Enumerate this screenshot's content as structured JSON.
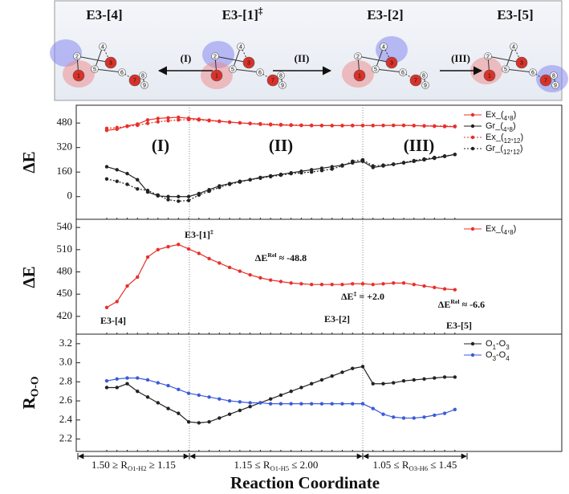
{
  "structures": [
    {
      "label": {
        "text": "E3-[4]"
      },
      "atoms": [
        "1",
        "2",
        "3",
        "4",
        "5",
        "6",
        "7",
        "8",
        "9"
      ]
    },
    {
      "label": {
        "text": "E3-[1]",
        "sup": "‡"
      },
      "atoms": [
        "1",
        "2",
        "3",
        "4",
        "5",
        "6",
        "7",
        "8",
        "9"
      ]
    },
    {
      "label": {
        "text": "E3-[2]"
      },
      "atoms": [
        "1",
        "2",
        "3",
        "4",
        "5",
        "6",
        "7",
        "8",
        "9"
      ]
    },
    {
      "label": {
        "text": "E3-[5]"
      },
      "atoms": [
        "1",
        "2",
        "3",
        "4",
        "5",
        "6",
        "7",
        "8",
        "9"
      ]
    }
  ],
  "reactions": [
    "(I)",
    "(II)",
    "(III)"
  ],
  "chart_data": [
    {
      "type": "line",
      "ylabel": {
        "text": "ΔE"
      },
      "categories": [
        null,
        null,
        null,
        null,
        null,
        null,
        null,
        null,
        null,
        null,
        null,
        null,
        null,
        null,
        null,
        null,
        null,
        null,
        null,
        null,
        null,
        null,
        null,
        null,
        null,
        null,
        null,
        null,
        null,
        null,
        null,
        null,
        null,
        null,
        null
      ],
      "ylim": [
        -148,
        596
      ],
      "yticks": [
        0,
        160,
        320,
        480
      ],
      "legend": "upper right",
      "annotations": [
        "(I)",
        "(II)",
        "(III)"
      ],
      "series": [
        {
          "name": "Ex_(4,8)",
          "color": "#e8302a",
          "dash": false,
          "values": [
            432,
            440,
            461,
            473,
            500,
            510,
            514,
            517,
            511,
            505,
            498,
            492,
            486,
            481,
            476,
            472,
            469,
            467,
            465,
            464,
            463,
            463,
            463,
            463,
            464,
            464,
            463,
            464,
            465,
            465,
            463,
            461,
            459,
            457,
            456
          ]
        },
        {
          "name": "Gr_(4,8)",
          "color": "#222222",
          "dash": false,
          "values": [
            195,
            175,
            150,
            110,
            30,
            5,
            0,
            0,
            0,
            20,
            45,
            70,
            85,
            100,
            110,
            125,
            135,
            145,
            155,
            165,
            175,
            185,
            195,
            205,
            220,
            230,
            190,
            200,
            210,
            220,
            230,
            240,
            250,
            262,
            275
          ]
        },
        {
          "name": "Ex_(12,12)",
          "color": "#e8302a",
          "dash": true,
          "values": [
            445,
            450,
            458,
            465,
            478,
            488,
            495,
            500,
            502,
            500,
            495,
            490,
            485,
            481,
            478,
            475,
            472,
            470,
            468,
            466,
            465,
            464,
            463,
            463,
            463,
            464,
            464,
            464,
            464,
            464,
            463,
            462,
            461,
            460,
            459
          ]
        },
        {
          "name": "Gr_(12,12)",
          "color": "#222222",
          "dash": true,
          "values": [
            115,
            100,
            80,
            50,
            40,
            10,
            -20,
            -30,
            -25,
            10,
            35,
            60,
            80,
            95,
            110,
            120,
            130,
            140,
            150,
            155,
            160,
            170,
            180,
            200,
            230,
            240,
            200,
            205,
            212,
            222,
            235,
            245,
            255,
            265,
            275
          ]
        }
      ]
    },
    {
      "type": "line",
      "ylabel": {
        "text": "ΔE"
      },
      "categories": [
        null,
        null,
        null,
        null,
        null,
        null,
        null,
        null,
        null,
        null,
        null,
        null,
        null,
        null,
        null,
        null,
        null,
        null,
        null,
        null,
        null,
        null,
        null,
        null,
        null,
        null,
        null,
        null,
        null,
        null,
        null,
        null,
        null,
        null,
        null
      ],
      "ylim": [
        396,
        551
      ],
      "yticks": [
        420,
        450,
        480,
        510,
        540
      ],
      "legend": "upper right",
      "annotations": [
        {
          "text": "E3-[4]"
        },
        {
          "text": "E3-[1]",
          "sup": "‡"
        },
        {
          "text": "ΔE",
          "sup": "Rel",
          "after": " ≈ -48.8"
        },
        {
          "text": "ΔE",
          "sup": "‡",
          "after": " = +2.0"
        },
        {
          "text": "E3-[2]"
        },
        {
          "text": "ΔE",
          "sup": "Rel",
          "after": " ≈ -6.6"
        },
        {
          "text": "E3-[5]"
        }
      ],
      "series": [
        {
          "name": "Ex_(4,8)",
          "color": "#e8302a",
          "dash": false,
          "values": [
            432,
            440,
            461,
            473,
            500,
            510,
            514,
            517,
            511,
            505,
            498,
            492,
            486,
            481,
            476,
            472,
            469,
            467,
            465,
            464,
            463,
            463,
            463,
            463,
            464,
            464,
            463,
            464,
            465,
            465,
            463,
            461,
            459,
            457,
            456
          ]
        }
      ]
    },
    {
      "type": "line",
      "ylabel": {
        "text": "R",
        "sub": "O-O"
      },
      "categories": [
        null,
        null,
        null,
        null,
        null,
        null,
        null,
        null,
        null,
        null,
        null,
        null,
        null,
        null,
        null,
        null,
        null,
        null,
        null,
        null,
        null,
        null,
        null,
        null,
        null,
        null,
        null,
        null,
        null,
        null,
        null,
        null,
        null,
        null,
        null
      ],
      "ylim": [
        2.07,
        3.3
      ],
      "yticks": [
        2.2,
        2.4,
        2.6,
        2.8,
        {
          "value": 3,
          "label": "3.0"
        },
        3.2
      ],
      "legend": "upper right",
      "series": [
        {
          "name": "O1-O3",
          "color": "#222222",
          "dash": false,
          "values": [
            2.74,
            2.74,
            2.78,
            2.7,
            2.64,
            2.58,
            2.52,
            2.47,
            2.38,
            2.37,
            2.38,
            2.42,
            2.46,
            2.5,
            2.54,
            2.58,
            2.62,
            2.66,
            2.7,
            2.74,
            2.78,
            2.82,
            2.86,
            2.9,
            2.94,
            2.96,
            2.78,
            2.78,
            2.79,
            2.81,
            2.82,
            2.83,
            2.84,
            2.85,
            2.85
          ]
        },
        {
          "name": "O3-O4",
          "color": "#3b5bdb",
          "dash": false,
          "values": [
            2.81,
            2.83,
            2.84,
            2.84,
            2.82,
            2.79,
            2.76,
            2.72,
            2.68,
            2.66,
            2.64,
            2.62,
            2.6,
            2.59,
            2.58,
            2.58,
            2.57,
            2.57,
            2.57,
            2.57,
            2.57,
            2.57,
            2.57,
            2.57,
            2.57,
            2.57,
            2.52,
            2.46,
            2.43,
            2.42,
            2.42,
            2.43,
            2.45,
            2.47,
            2.51
          ]
        }
      ],
      "x_ranges": [
        {
          "text": "1.50 ≥ R",
          "sub": "O1-H2",
          "after": " ≥ 1.15"
        },
        {
          "text": "1.15 ≤ R",
          "sub": "O1-H5",
          "after": " ≤ 2.00"
        },
        {
          "text": "1.05 ≤ R",
          "sub": "O3-H6",
          "after": " ≤ 1.45"
        }
      ],
      "xlabel": "Reaction Coordinate"
    }
  ]
}
